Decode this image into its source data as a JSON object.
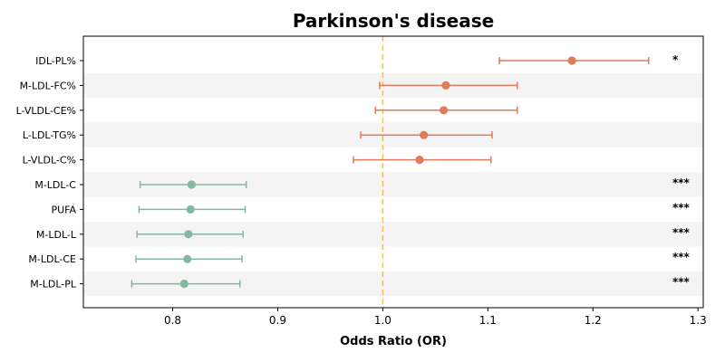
{
  "chart_data": {
    "type": "forest",
    "title": "Parkinson's disease",
    "xlabel": "Odds Ratio (OR)",
    "xlim": [
      0.715,
      1.305
    ],
    "xticks": [
      0.8,
      0.9,
      1.0,
      1.1,
      1.2,
      1.3
    ],
    "xtick_labels": [
      "0.8",
      "0.9",
      "1.0",
      "1.1",
      "1.2",
      "1.3"
    ],
    "reference_line": 1.0,
    "colors": {
      "positive": "#e07b5a",
      "negative": "#85b8a0",
      "reference": "#f5c06a",
      "stripe": "#f4f4f4"
    },
    "rows": [
      {
        "label": "IDL-PL%",
        "or": 1.18,
        "lower": 1.111,
        "upper": 1.253,
        "sig": "*"
      },
      {
        "label": "M-LDL-FC%",
        "or": 1.06,
        "lower": 0.997,
        "upper": 1.128,
        "sig": ""
      },
      {
        "label": "L-VLDL-CE%",
        "or": 1.058,
        "lower": 0.993,
        "upper": 1.128,
        "sig": ""
      },
      {
        "label": "L-LDL-TG%",
        "or": 1.039,
        "lower": 0.979,
        "upper": 1.104,
        "sig": ""
      },
      {
        "label": "L-VLDL-C%",
        "or": 1.035,
        "lower": 0.972,
        "upper": 1.103,
        "sig": ""
      },
      {
        "label": "M-LDL-C",
        "or": 0.818,
        "lower": 0.769,
        "upper": 0.87,
        "sig": "***"
      },
      {
        "label": "PUFA",
        "or": 0.817,
        "lower": 0.768,
        "upper": 0.869,
        "sig": "***"
      },
      {
        "label": "M-LDL-L",
        "or": 0.815,
        "lower": 0.766,
        "upper": 0.867,
        "sig": "***"
      },
      {
        "label": "M-LDL-CE",
        "or": 0.814,
        "lower": 0.765,
        "upper": 0.866,
        "sig": "***"
      },
      {
        "label": "M-LDL-PL",
        "or": 0.811,
        "lower": 0.761,
        "upper": 0.864,
        "sig": "***"
      }
    ]
  }
}
